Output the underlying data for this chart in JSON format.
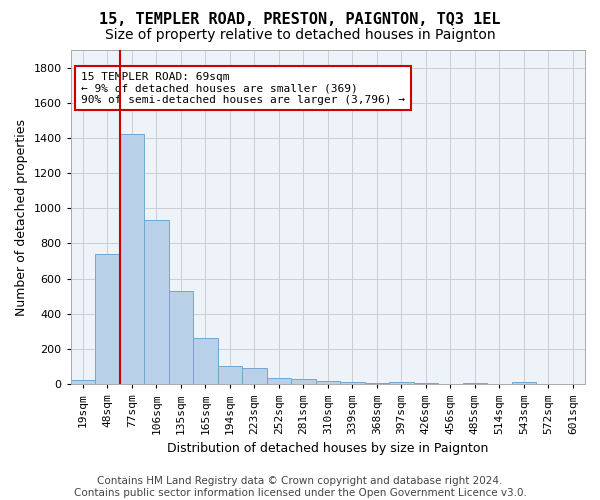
{
  "title": "15, TEMPLER ROAD, PRESTON, PAIGNTON, TQ3 1EL",
  "subtitle": "Size of property relative to detached houses in Paignton",
  "xlabel": "Distribution of detached houses by size in Paignton",
  "ylabel": "Number of detached properties",
  "bar_values": [
    22,
    740,
    1420,
    935,
    530,
    265,
    105,
    93,
    37,
    28,
    18,
    10,
    5,
    15,
    5,
    3,
    5,
    3,
    13,
    0,
    0
  ],
  "bar_labels": [
    "19sqm",
    "48sqm",
    "77sqm",
    "106sqm",
    "135sqm",
    "165sqm",
    "194sqm",
    "223sqm",
    "252sqm",
    "281sqm",
    "310sqm",
    "339sqm",
    "368sqm",
    "397sqm",
    "426sqm",
    "456sqm",
    "485sqm",
    "514sqm",
    "543sqm",
    "572sqm",
    "601sqm"
  ],
  "bar_color": "#b8d0e8",
  "bar_edgecolor": "#6fa8d0",
  "vline_color": "#cc0000",
  "annotation_text": "15 TEMPLER ROAD: 69sqm\n← 9% of detached houses are smaller (369)\n90% of semi-detached houses are larger (3,796) →",
  "annotation_box_edgecolor": "#cc0000",
  "annotation_box_facecolor": "#ffffff",
  "ylim": [
    0,
    1900
  ],
  "yticks": [
    0,
    200,
    400,
    600,
    800,
    1000,
    1200,
    1400,
    1600,
    1800
  ],
  "footer_text": "Contains HM Land Registry data © Crown copyright and database right 2024.\nContains public sector information licensed under the Open Government Licence v3.0.",
  "bg_color": "#eef2f9",
  "grid_color": "#c8c8c8",
  "title_fontsize": 11,
  "subtitle_fontsize": 10,
  "axis_label_fontsize": 9,
  "tick_fontsize": 8,
  "footer_fontsize": 7.5
}
